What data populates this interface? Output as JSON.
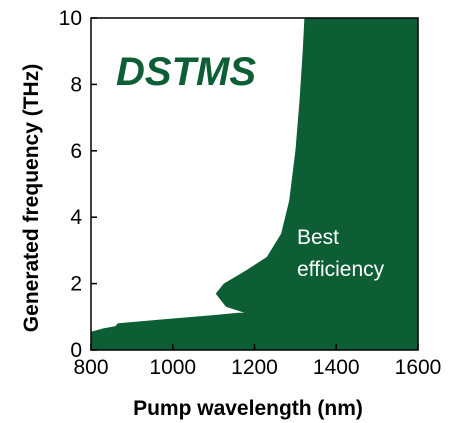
{
  "chart_data": {
    "type": "area",
    "title": "DSTMS",
    "xlabel": "Pump wavelength (nm)",
    "ylabel": "Generated frequency (THz)",
    "xlim": [
      800,
      1600
    ],
    "ylim": [
      0,
      10
    ],
    "xticks": [
      800,
      1000,
      1200,
      1400,
      1600
    ],
    "yticks": [
      0,
      2,
      4,
      6,
      8,
      10
    ],
    "xtick_labels": [
      "800",
      "1000",
      "1200",
      "1400",
      "1600"
    ],
    "ytick_labels": [
      "0",
      "2",
      "4",
      "6",
      "8",
      "10"
    ],
    "grid": false,
    "legend": "none",
    "fill_color": "#0d5e35",
    "series": [
      {
        "region": "Best efficiency",
        "boundary": [
          {
            "x": 800,
            "y": 0.55
          },
          {
            "x": 830,
            "y": 0.65
          },
          {
            "x": 860,
            "y": 0.72
          },
          {
            "x": 865,
            "y": 0.8
          },
          {
            "x": 880,
            "y": 0.82
          },
          {
            "x": 1000,
            "y": 0.95
          },
          {
            "x": 1100,
            "y": 1.05
          },
          {
            "x": 1160,
            "y": 1.12
          },
          {
            "x": 1175,
            "y": 1.12
          },
          {
            "x": 1130,
            "y": 1.3
          },
          {
            "x": 1105,
            "y": 1.7
          },
          {
            "x": 1125,
            "y": 2.0
          },
          {
            "x": 1180,
            "y": 2.4
          },
          {
            "x": 1230,
            "y": 2.8
          },
          {
            "x": 1265,
            "y": 3.5
          },
          {
            "x": 1285,
            "y": 4.5
          },
          {
            "x": 1300,
            "y": 6.0
          },
          {
            "x": 1310,
            "y": 7.5
          },
          {
            "x": 1318,
            "y": 9.0
          },
          {
            "x": 1322,
            "y": 10.0
          }
        ]
      }
    ],
    "annotations": [
      "Best",
      "efficiency"
    ]
  }
}
